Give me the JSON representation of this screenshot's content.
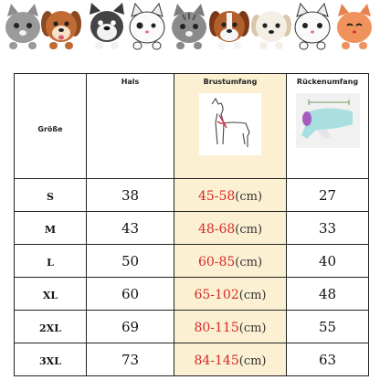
{
  "banner": {
    "animals": [
      "cat-gray",
      "dog-brown",
      "dog-bulldog",
      "cat-white",
      "cat-tabby",
      "dog-beagle",
      "dog-spaniel",
      "cat-white-2",
      "cat-orange"
    ]
  },
  "table": {
    "headers": {
      "size": "Größe",
      "neck": "Hals",
      "chest": "Brustumfang",
      "back": "Rückenumfang"
    },
    "unit": "(cm)",
    "rows": [
      {
        "size": "S",
        "neck": "38",
        "chest": "45-58",
        "back": "27"
      },
      {
        "size": "M",
        "neck": "43",
        "chest": "48-68",
        "back": "33"
      },
      {
        "size": "L",
        "neck": "50",
        "chest": "60-85",
        "back": "40"
      },
      {
        "size": "XL",
        "neck": "60",
        "chest": "65-102",
        "back": "48"
      },
      {
        "size": "2XL",
        "neck": "69",
        "chest": "80-115",
        "back": "55"
      },
      {
        "size": "3XL",
        "neck": "73",
        "chest": "84-145",
        "back": "63"
      }
    ],
    "colors": {
      "highlight": "#fbf0d2",
      "range_text": "#d72a2a",
      "coat_body": "#a9dfe0",
      "coat_lining": "#a65bbf"
    }
  }
}
